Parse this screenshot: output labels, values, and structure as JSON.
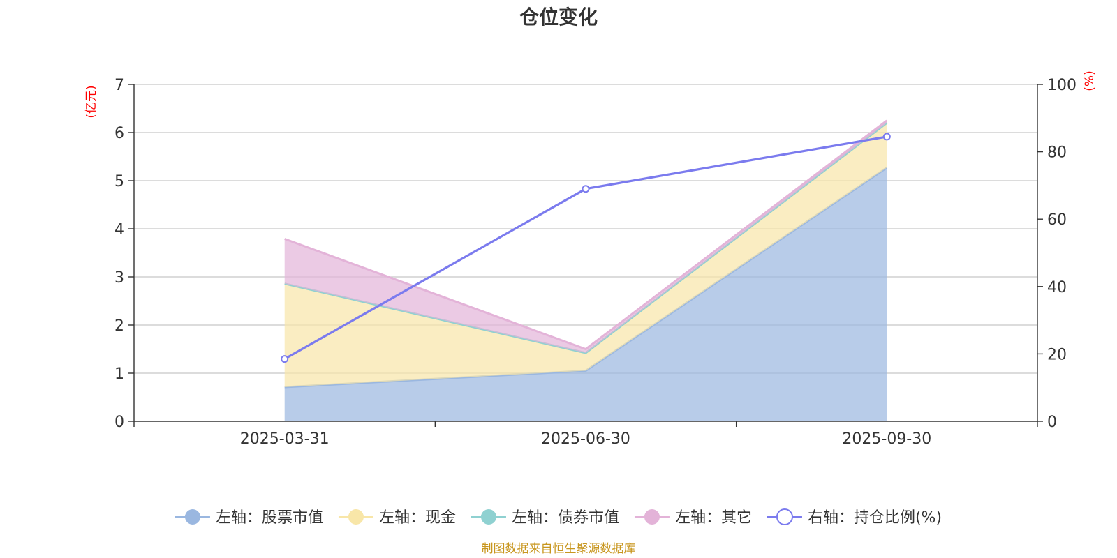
{
  "chart_data": {
    "type": "area",
    "title": "仓位变化",
    "categories": [
      "2025-03-31",
      "2025-06-30",
      "2025-09-30"
    ],
    "left_axis": {
      "unit": "(亿元)",
      "ylim": [
        0,
        7
      ],
      "ticks": [
        "0",
        "1",
        "2",
        "3",
        "4",
        "5",
        "6",
        "7"
      ]
    },
    "right_axis": {
      "unit": "(%)",
      "ylim": [
        0,
        100
      ],
      "ticks": [
        "0",
        "20",
        "40",
        "60",
        "80",
        "100"
      ]
    },
    "series": [
      {
        "name": "左轴：股票市值",
        "axis": "left",
        "kind": "stacked-area",
        "color": "#9ab7e0",
        "values": [
          0.71,
          1.05,
          5.27
        ]
      },
      {
        "name": "左轴：现金",
        "axis": "left",
        "kind": "stacked-area",
        "color": "#f8e6a8",
        "values": [
          2.15,
          0.37,
          0.93
        ]
      },
      {
        "name": "左轴：债券市值",
        "axis": "left",
        "kind": "stacked-area",
        "color": "#8fd1d1",
        "values": [
          0.0,
          0.0,
          0.0
        ]
      },
      {
        "name": "左轴：其它",
        "axis": "left",
        "kind": "stacked-area",
        "color": "#e3b3d8",
        "values": [
          0.93,
          0.08,
          0.05
        ]
      },
      {
        "name": "右轴：持仓比例(%)",
        "axis": "right",
        "kind": "line",
        "color": "#7b7bee",
        "values": [
          18.5,
          69.0,
          84.5
        ]
      }
    ],
    "source": "制图数据来自恒生聚源数据库"
  }
}
